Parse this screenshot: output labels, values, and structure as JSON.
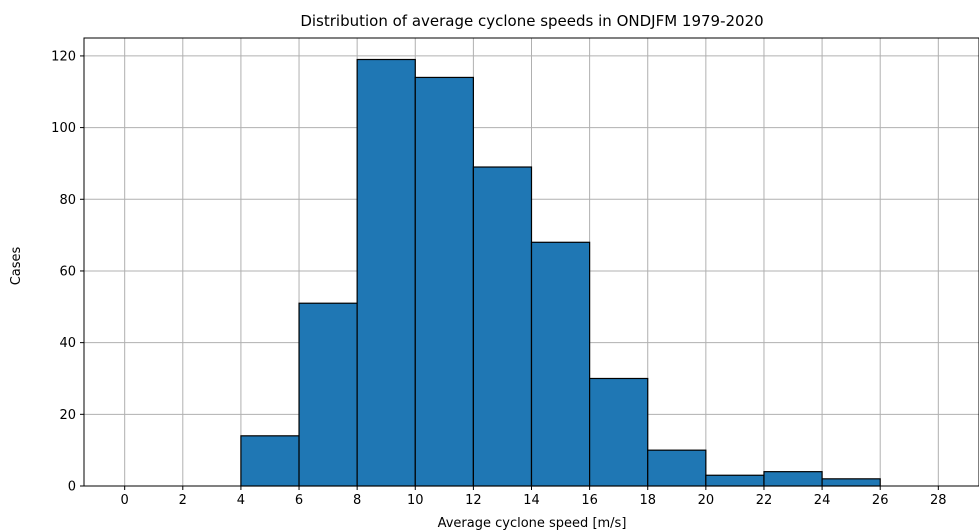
{
  "chart_data": {
    "type": "bar",
    "title": "Distribution of average cyclone speeds in ONDJFM 1979-2020",
    "xlabel": "Average cyclone speed [m/s]",
    "ylabel": "Cases",
    "bin_edges": [
      0,
      2,
      4,
      6,
      8,
      10,
      12,
      14,
      16,
      18,
      20,
      22,
      24,
      26,
      28
    ],
    "values": [
      0,
      0,
      14,
      51,
      119,
      114,
      89,
      68,
      30,
      10,
      3,
      4,
      2,
      0
    ],
    "xlim": [
      -1.4,
      29.4
    ],
    "ylim": [
      0,
      125
    ],
    "xticks": [
      0,
      2,
      4,
      6,
      8,
      10,
      12,
      14,
      16,
      18,
      20,
      22,
      24,
      26,
      28
    ],
    "xtick_labels": [
      "0",
      "2",
      "4",
      "6",
      "8",
      "10",
      "12",
      "14",
      "16",
      "18",
      "20",
      "22",
      "24",
      "26",
      "28"
    ],
    "yticks": [
      0,
      20,
      40,
      60,
      80,
      100,
      120
    ],
    "ytick_labels": [
      "0",
      "20",
      "40",
      "60",
      "80",
      "100",
      "120"
    ],
    "grid": true,
    "bar_color": "#1f77b4",
    "edge_color": "#000000",
    "grid_color": "#b0b0b0"
  }
}
